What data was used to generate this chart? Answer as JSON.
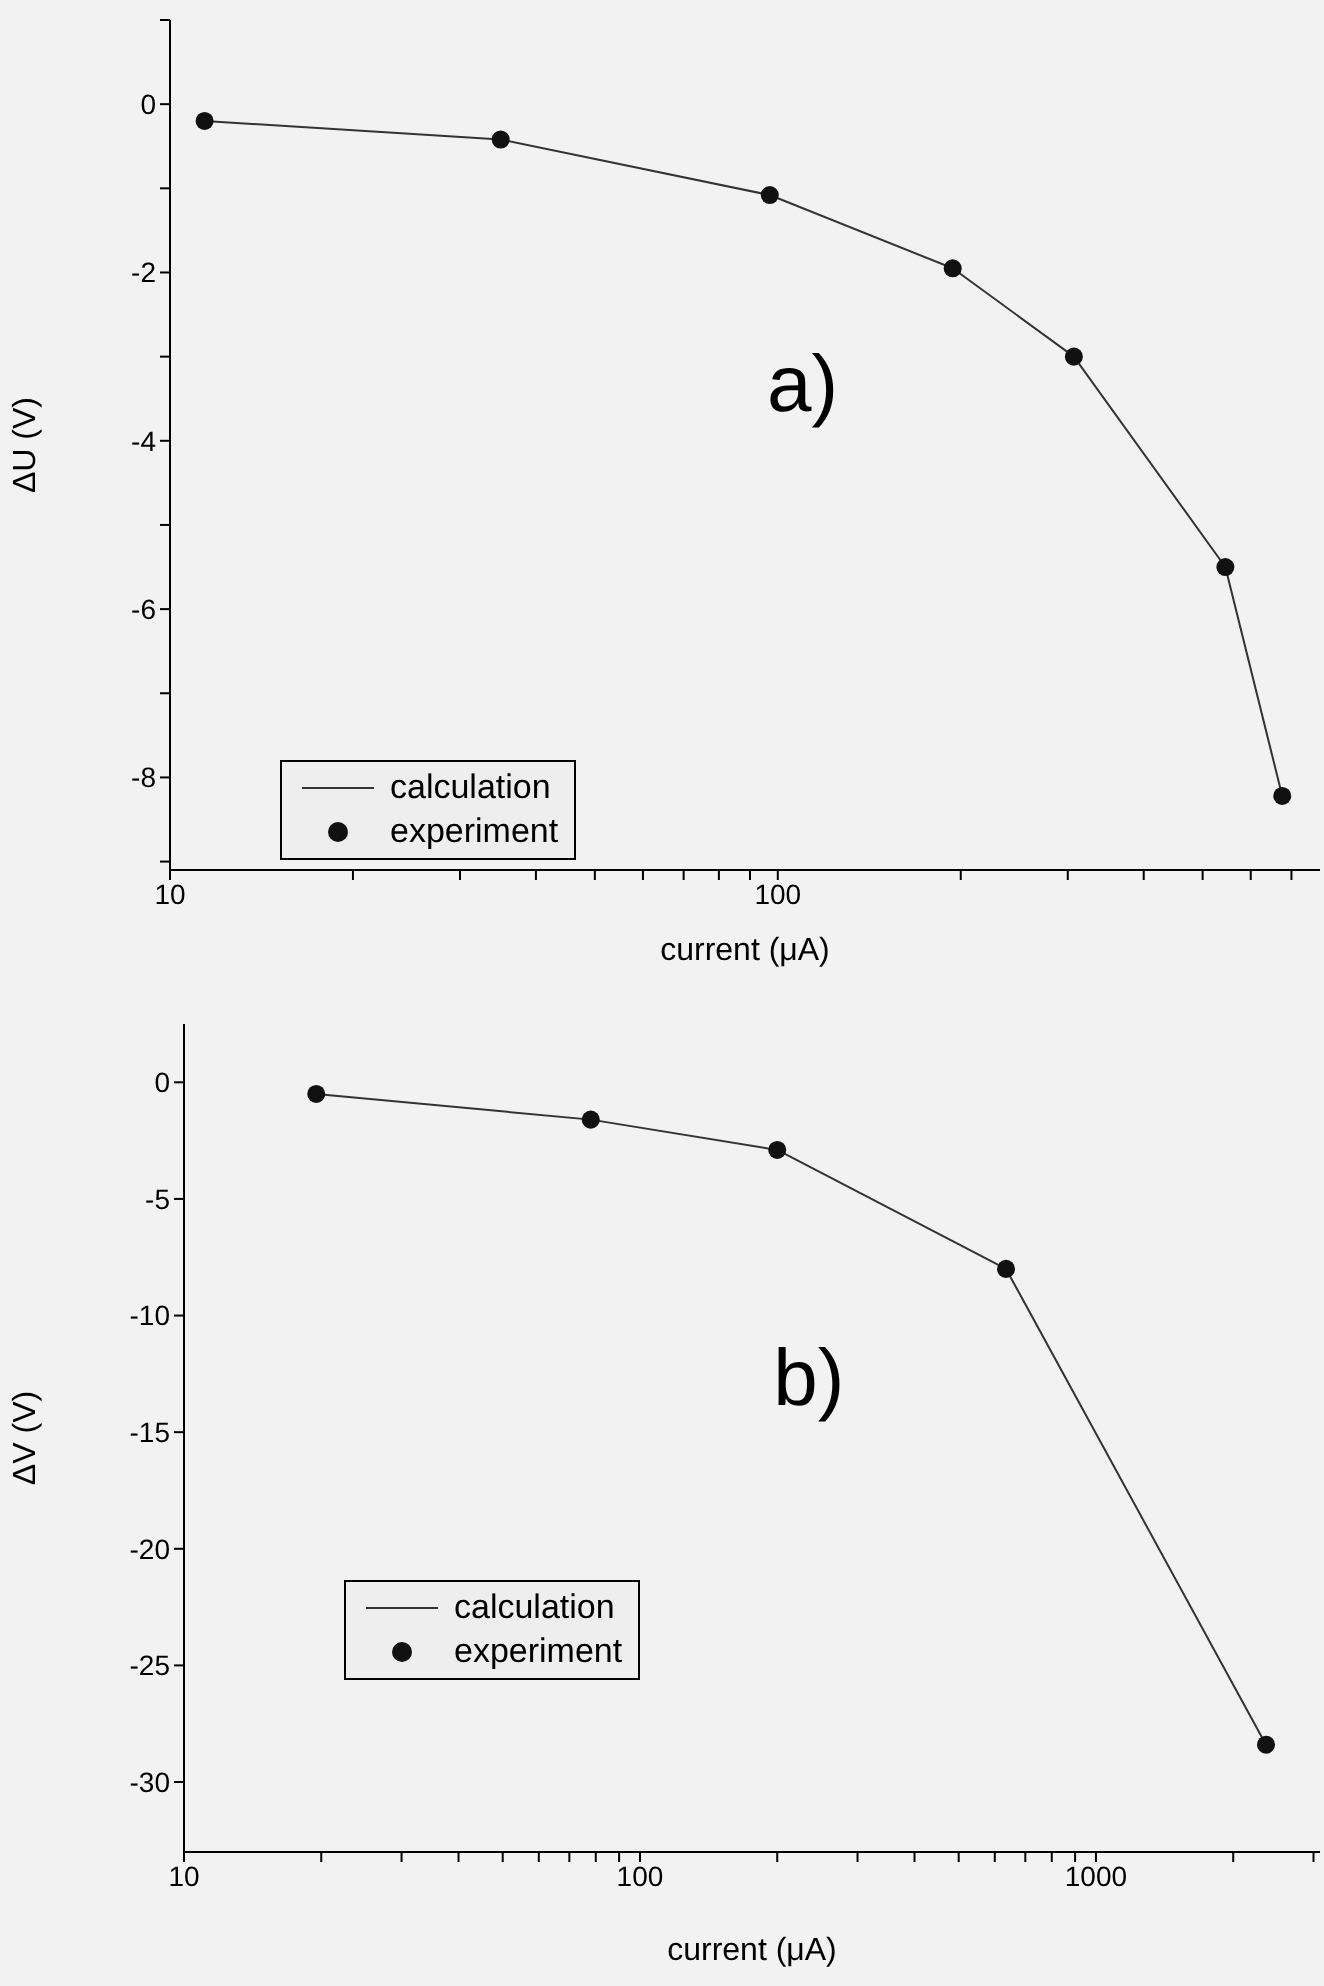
{
  "chart_data": [
    {
      "type": "line",
      "xlabel": "current (μA)",
      "ylabel": "ΔU (V)",
      "annotations": [
        "a)"
      ],
      "log": "x",
      "legend": "bottom left",
      "grid": false,
      "xlim": [
        10,
        780
      ],
      "xticks": [
        10,
        {
          "value": 20,
          "label": null
        },
        {
          "value": 30,
          "label": null
        },
        {
          "value": 40,
          "label": null
        },
        {
          "value": 50,
          "label": null
        },
        {
          "value": 60,
          "label": null
        },
        {
          "value": 70,
          "label": null
        },
        {
          "value": 80,
          "label": null
        },
        {
          "value": 90,
          "label": null
        },
        100,
        {
          "value": 200,
          "label": null
        },
        {
          "value": 300,
          "label": null
        },
        {
          "value": 400,
          "label": null
        },
        {
          "value": 500,
          "label": null
        },
        {
          "value": 600,
          "label": null
        },
        {
          "value": 700,
          "label": null
        }
      ],
      "ylim": [
        -9.1,
        1
      ],
      "yticks": [
        {
          "value": -9,
          "label": null
        },
        -8,
        {
          "value": -7,
          "label": null
        },
        -6,
        {
          "value": -5,
          "label": null
        },
        -4,
        {
          "value": -3,
          "label": null
        },
        -2,
        {
          "value": -1,
          "label": null
        },
        0,
        {
          "value": 1,
          "label": null
        }
      ],
      "series": [
        {
          "name": "calculation",
          "marker": "none",
          "color": "#333333",
          "x": [
            11.4,
            35,
            97,
            194,
            307,
            545,
            676
          ],
          "values": [
            -0.2,
            -0.42,
            -1.08,
            -1.95,
            -3.0,
            -5.5,
            -8.22
          ]
        },
        {
          "name": "experiment",
          "type": "scatter",
          "marker": "circle",
          "color": "#111111",
          "x": [
            11.4,
            35,
            97,
            194,
            307,
            545,
            676
          ],
          "values": [
            -0.2,
            -0.42,
            -1.08,
            -1.95,
            -3.0,
            -5.5,
            -8.22
          ]
        }
      ]
    },
    {
      "type": "line",
      "xlabel": "current (μA)",
      "ylabel": "ΔV (V)",
      "annotations": [
        "b)"
      ],
      "log": "x",
      "legend": "bottom left",
      "grid": false,
      "xlim": [
        10,
        3100
      ],
      "xticks": [
        10,
        {
          "value": 20,
          "label": null
        },
        {
          "value": 30,
          "label": null
        },
        {
          "value": 40,
          "label": null
        },
        {
          "value": 50,
          "label": null
        },
        {
          "value": 60,
          "label": null
        },
        {
          "value": 70,
          "label": null
        },
        {
          "value": 80,
          "label": null
        },
        {
          "value": 90,
          "label": null
        },
        100,
        {
          "value": 200,
          "label": null
        },
        {
          "value": 300,
          "label": null
        },
        {
          "value": 400,
          "label": null
        },
        {
          "value": 500,
          "label": null
        },
        {
          "value": 600,
          "label": null
        },
        {
          "value": 700,
          "label": null
        },
        {
          "value": 800,
          "label": null
        },
        {
          "value": 900,
          "label": null
        },
        1000,
        {
          "value": 2000,
          "label": null
        },
        {
          "value": 3000,
          "label": null
        }
      ],
      "ylim": [
        -33,
        2.5
      ],
      "yticks": [
        -30,
        -25,
        -20,
        -15,
        -10,
        -5,
        0
      ],
      "series": [
        {
          "name": "calculation",
          "marker": "none",
          "color": "#333333",
          "x": [
            19.5,
            78,
            200,
            635,
            2360
          ],
          "values": [
            -0.5,
            -1.6,
            -2.9,
            -8.0,
            -28.4
          ]
        },
        {
          "name": "experiment",
          "type": "scatter",
          "marker": "circle",
          "color": "#111111",
          "x": [
            19.5,
            78,
            200,
            635,
            2360
          ],
          "values": [
            -0.5,
            -1.6,
            -2.9,
            -8.0,
            -28.4
          ]
        }
      ]
    }
  ]
}
